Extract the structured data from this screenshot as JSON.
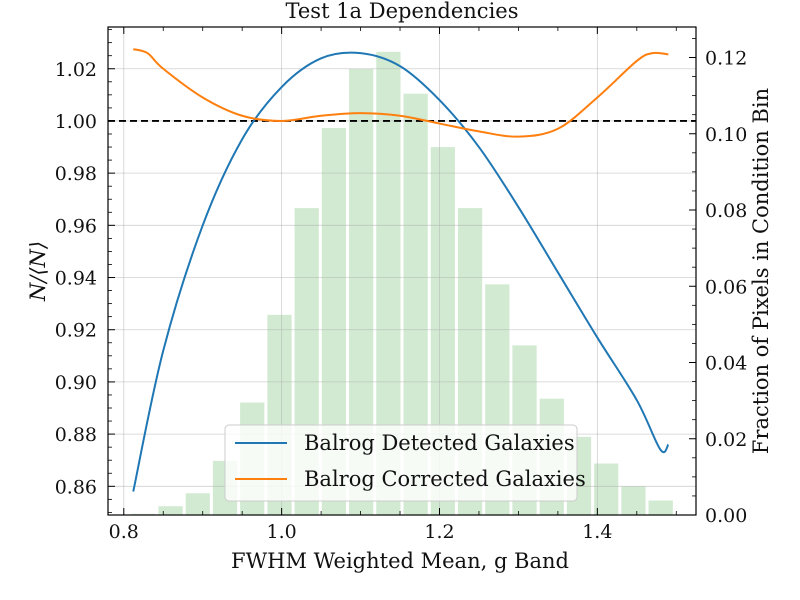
{
  "chart_data": {
    "type": "line",
    "title": "Test 1a Dependencies",
    "xlabel": "FWHM Weighted Mean, g Band",
    "ylabel": "N/⟨N⟩",
    "y2label": "Fraction of Pixels in Condition Bin",
    "xlim": [
      0.78,
      1.525
    ],
    "ylim": [
      0.849,
      1.036
    ],
    "y2lim": [
      0.0,
      0.128
    ],
    "xticks": [
      0.8,
      1.0,
      1.2,
      1.4
    ],
    "xtick_labels": [
      "0.8",
      "1.0",
      "1.2",
      "1.4"
    ],
    "yticks": [
      0.86,
      0.88,
      0.9,
      0.92,
      0.94,
      0.96,
      0.98,
      1.0,
      1.02
    ],
    "ytick_labels": [
      "0.86",
      "0.88",
      "0.90",
      "0.92",
      "0.94",
      "0.96",
      "0.98",
      "1.00",
      "1.02"
    ],
    "y2ticks": [
      0.0,
      0.02,
      0.04,
      0.06,
      0.08,
      0.1,
      0.12
    ],
    "y2tick_labels": [
      "0.00",
      "0.02",
      "0.04",
      "0.06",
      "0.08",
      "0.10",
      "0.12"
    ],
    "grid": true,
    "legend_position": "lower-center",
    "reference_line": {
      "y": 1.0,
      "style": "dashed",
      "color": "#000000"
    },
    "histogram": {
      "axis": "right",
      "color": "#2ca02c",
      "opacity": 0.22,
      "bin_edges": [
        0.8075,
        0.842,
        0.8765,
        0.911,
        0.9455,
        0.98,
        1.0145,
        1.049,
        1.0835,
        1.118,
        1.1525,
        1.187,
        1.2215,
        1.256,
        1.2905,
        1.325,
        1.3595,
        1.394,
        1.4285,
        1.463,
        1.4975
      ],
      "values": [
        0.0003,
        0.0023,
        0.0057,
        0.0142,
        0.0295,
        0.0525,
        0.0805,
        0.1015,
        0.117,
        0.1215,
        0.1105,
        0.0965,
        0.0805,
        0.0605,
        0.0445,
        0.0305,
        0.0205,
        0.0135,
        0.0075,
        0.0038
      ]
    },
    "series": [
      {
        "name": "Balrog Detected Galaxies",
        "color": "#1f77b4",
        "axis": "left",
        "x": [
          0.812,
          0.85,
          0.9,
          0.95,
          1.0,
          1.05,
          1.1,
          1.15,
          1.2,
          1.25,
          1.3,
          1.35,
          1.4,
          1.45,
          1.48,
          1.49
        ],
        "y": [
          0.858,
          0.912,
          0.96,
          0.993,
          1.013,
          1.024,
          1.026,
          1.021,
          1.008,
          0.99,
          0.967,
          0.942,
          0.917,
          0.893,
          0.874,
          0.876
        ]
      },
      {
        "name": "Balrog Corrected Galaxies",
        "color": "#ff7f0e",
        "axis": "left",
        "x": [
          0.812,
          0.83,
          0.85,
          0.9,
          0.95,
          1.0,
          1.05,
          1.1,
          1.15,
          1.2,
          1.25,
          1.3,
          1.35,
          1.4,
          1.45,
          1.47,
          1.49
        ],
        "y": [
          1.0275,
          1.026,
          1.02,
          1.009,
          1.002,
          1.0,
          1.002,
          1.003,
          1.002,
          0.999,
          0.996,
          0.994,
          0.997,
          1.009,
          1.023,
          1.026,
          1.0255
        ]
      }
    ]
  }
}
